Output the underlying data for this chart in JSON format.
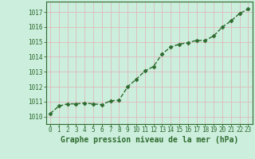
{
  "x": [
    0,
    1,
    2,
    3,
    4,
    5,
    6,
    7,
    8,
    9,
    10,
    11,
    12,
    13,
    14,
    15,
    16,
    17,
    18,
    19,
    20,
    21,
    22,
    23
  ],
  "y": [
    1010.2,
    1010.7,
    1010.85,
    1010.85,
    1010.9,
    1010.85,
    1010.8,
    1011.05,
    1011.1,
    1012.0,
    1012.5,
    1013.05,
    1013.35,
    1014.2,
    1014.65,
    1014.85,
    1014.95,
    1015.1,
    1015.1,
    1015.4,
    1016.0,
    1016.4,
    1016.9,
    1017.2
  ],
  "line_color": "#2d6a2d",
  "marker": "D",
  "marker_size": 2.5,
  "linewidth": 1.0,
  "linestyle": "--",
  "bg_color": "#cceedd",
  "grid_color": "#ddbbbb",
  "xlabel": "Graphe pression niveau de la mer (hPa)",
  "xlabel_color": "#2d6a2d",
  "tick_label_color": "#2d6a2d",
  "ylim": [
    1009.5,
    1017.7
  ],
  "xlim": [
    -0.5,
    23.5
  ],
  "yticks": [
    1010,
    1011,
    1012,
    1013,
    1014,
    1015,
    1016,
    1017
  ],
  "xticks": [
    0,
    1,
    2,
    3,
    4,
    5,
    6,
    7,
    8,
    9,
    10,
    11,
    12,
    13,
    14,
    15,
    16,
    17,
    18,
    19,
    20,
    21,
    22,
    23
  ],
  "axis_color": "#2d6a2d",
  "font_size_ticks": 5.5,
  "font_size_xlabel": 7
}
